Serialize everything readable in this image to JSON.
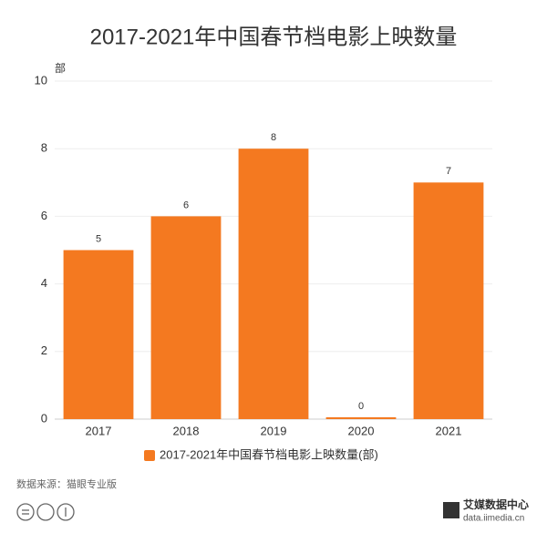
{
  "chart_data": {
    "type": "bar",
    "title": "2017-2021年中国春节档电影上映数量",
    "y_unit": "部",
    "categories": [
      "2017",
      "2018",
      "2019",
      "2020",
      "2021"
    ],
    "values": [
      5,
      6,
      8,
      0,
      7
    ],
    "color": "#f47920",
    "ylim": [
      0,
      10
    ],
    "yticks": [
      0,
      2,
      4,
      6,
      8,
      10
    ],
    "grid": true,
    "legend": "2017-2021年中国春节档电影上映数量(部)",
    "source": "数据来源：猫眼专业版",
    "logo_name": "艾媒数据中心",
    "logo_url": "data.iimedia.cn"
  }
}
